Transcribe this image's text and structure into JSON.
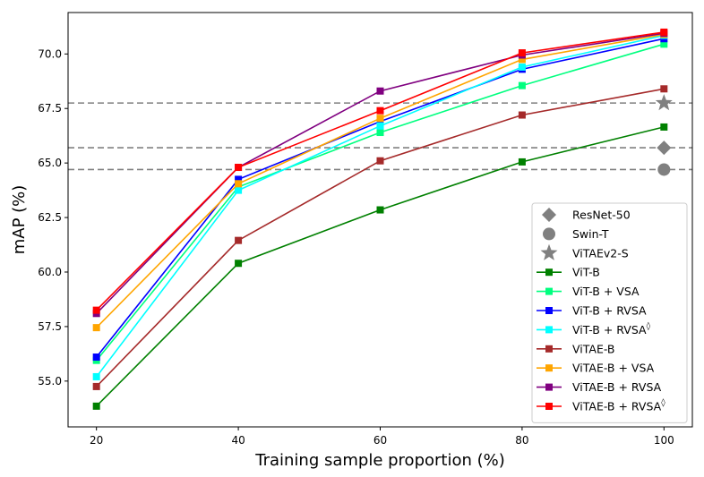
{
  "chart_data": {
    "type": "line",
    "title": "",
    "xlabel": "Training sample proportion (%)",
    "ylabel": "mAP (%)",
    "xlim": [
      16,
      104
    ],
    "ylim": [
      52.9,
      71.9
    ],
    "x": [
      20,
      40,
      60,
      80,
      100
    ],
    "x_ticks": [
      20,
      40,
      60,
      80,
      100
    ],
    "y_ticks": [
      55.0,
      57.5,
      60.0,
      62.5,
      65.0,
      67.5,
      70.0
    ],
    "y_tick_labels": [
      "55.0",
      "57.5",
      "60.0",
      "62.5",
      "65.0",
      "67.5",
      "70.0"
    ],
    "grid": false,
    "legend_position": "lower-right",
    "series": [
      {
        "name": "ViT-B",
        "color": "#008000",
        "marker": "square",
        "values": [
          53.85,
          60.4,
          62.85,
          65.05,
          66.65
        ]
      },
      {
        "name": "ViT-B + VSA",
        "color": "#00ff7f",
        "marker": "square",
        "values": [
          55.95,
          63.9,
          66.4,
          68.55,
          70.45
        ]
      },
      {
        "name": "ViT-B + RVSA",
        "color": "#0000ff",
        "marker": "square",
        "values": [
          56.1,
          64.25,
          66.9,
          69.3,
          70.7
        ]
      },
      {
        "name": "ViT-B + RVSA",
        "name_suffix": "◊",
        "color": "#00ffff",
        "marker": "square",
        "values": [
          55.2,
          63.75,
          66.7,
          69.4,
          70.85
        ]
      },
      {
        "name": "ViTAE-B",
        "color": "#a52a2a",
        "marker": "square",
        "values": [
          54.75,
          61.45,
          65.1,
          67.2,
          68.4
        ]
      },
      {
        "name": "ViTAE-B + VSA",
        "color": "#ffa500",
        "marker": "square",
        "values": [
          57.45,
          64.05,
          67.05,
          69.75,
          70.9
        ]
      },
      {
        "name": "ViTAE-B + RVSA",
        "color": "#800080",
        "marker": "square",
        "values": [
          58.1,
          64.8,
          68.3,
          69.95,
          70.95
        ]
      },
      {
        "name": "ViTAE-B + RVSA",
        "name_suffix": "◊",
        "color": "#ff0000",
        "marker": "square",
        "values": [
          58.25,
          64.8,
          67.4,
          70.05,
          71.0
        ]
      }
    ],
    "baselines": [
      {
        "name": "ResNet-50",
        "value": 65.7,
        "x": 100,
        "marker": "diamond",
        "color": "#808080"
      },
      {
        "name": "Swin-T",
        "value": 64.7,
        "x": 100,
        "marker": "circle",
        "color": "#808080"
      },
      {
        "name": "ViTAEv2-S",
        "value": 67.75,
        "x": 100,
        "marker": "star",
        "color": "#808080"
      }
    ]
  }
}
